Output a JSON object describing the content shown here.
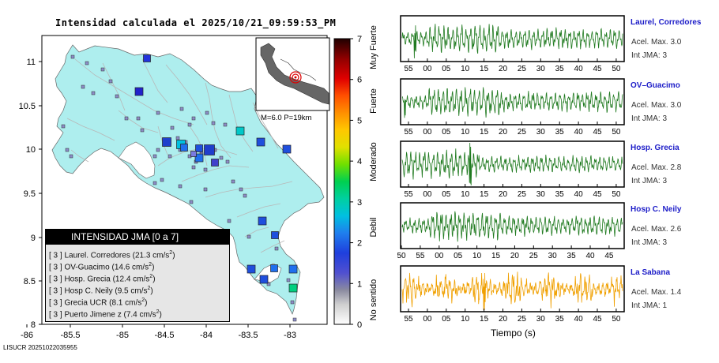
{
  "header": {
    "title": "Intensidad calculada el 2025/10/21_09:59:53_PM",
    "footer_id": "LISUCR 20251022035955"
  },
  "map": {
    "x_ticks": [
      "-86",
      "-85.5",
      "-85",
      "-84.5",
      "-84",
      "-83.5",
      "-83"
    ],
    "y_ticks": [
      "11",
      "10.5",
      "10",
      "9.5",
      "9",
      "8.5",
      "8"
    ],
    "inset_caption": "M=6.0 P=19km",
    "colors": {
      "land": "#aeeeee",
      "sea": "#ffffff",
      "rivers": "#b0b0b0"
    }
  },
  "legend": {
    "header": "INTENSIDAD JMA [0 a 7]",
    "items": [
      {
        "level": "[ 3 ]",
        "name": "Laurel. Corredores",
        "value": "(21.3 cm/s",
        "exp": "2",
        "close": ")"
      },
      {
        "level": "[ 3 ]",
        "name": "OV-Guacimo",
        "value": "(14.6 cm/s",
        "exp": "2",
        "close": ")"
      },
      {
        "level": "[ 3 ]",
        "name": "Hosp. Grecia",
        "value": "(12.4 cm/s",
        "exp": "2",
        "close": ")"
      },
      {
        "level": "[ 3 ]",
        "name": "Hosp C. Neily",
        "value": "(9.5 cm/s",
        "exp": "2",
        "close": ")"
      },
      {
        "level": "[ 3 ]",
        "name": "Grecia UCR",
        "value": "(8.1 cm/s",
        "exp": "2",
        "close": ")"
      },
      {
        "level": "[ 3 ]",
        "name": "Puerto Jimene z",
        "value": "(7.4 cm/s",
        "exp": "2",
        "close": ")"
      }
    ]
  },
  "colorbar": {
    "ticks": [
      "0",
      "1",
      "2",
      "3",
      "4",
      "5",
      "6",
      "7"
    ],
    "categories": [
      "No sentido",
      "Debil",
      "Moderado",
      "Fuerte",
      "Muy Fuerte"
    ]
  },
  "seismograms": {
    "x_label": "Tiempo (s)",
    "stations": [
      {
        "name": "Laurel, Corredores",
        "acel": "Acel. Max. 3.0",
        "int": "Int JMA: 3",
        "color": "#1f7a1f",
        "ticks": [
          "55",
          "00",
          "05",
          "10",
          "15",
          "20",
          "25",
          "30",
          "35",
          "40",
          "45",
          "50"
        ]
      },
      {
        "name": "OV–Guacimo",
        "acel": "Acel. Max. 3.0",
        "int": "Int JMA: 3",
        "color": "#1f7a1f",
        "ticks": [
          "55",
          "00",
          "05",
          "10",
          "15",
          "20",
          "25",
          "30",
          "35",
          "40",
          "45",
          "50"
        ]
      },
      {
        "name": "Hosp. Grecia",
        "acel": "Acel. Max. 2.8",
        "int": "Int JMA: 3",
        "color": "#1f7a1f",
        "ticks": [
          "55",
          "00",
          "05",
          "10",
          "15",
          "20",
          "25",
          "30",
          "35",
          "40",
          "45",
          "50"
        ]
      },
      {
        "name": "Hosp C. Neily",
        "acel": "Acel. Max. 2.6",
        "int": "Int JMA: 3",
        "color": "#1f7a1f",
        "ticks": [
          "50",
          "55",
          "00",
          "05",
          "10",
          "15",
          "20",
          "25",
          "30",
          "35",
          "40",
          "45"
        ]
      },
      {
        "name": "La Sabana",
        "acel": "Acel. Max. 1.4",
        "int": "Int JMA: 1",
        "color": "#f0a000",
        "ticks": [
          "55",
          "00",
          "05",
          "10",
          "15",
          "20",
          "25",
          "30",
          "35",
          "40",
          "45",
          "50"
        ]
      }
    ]
  }
}
